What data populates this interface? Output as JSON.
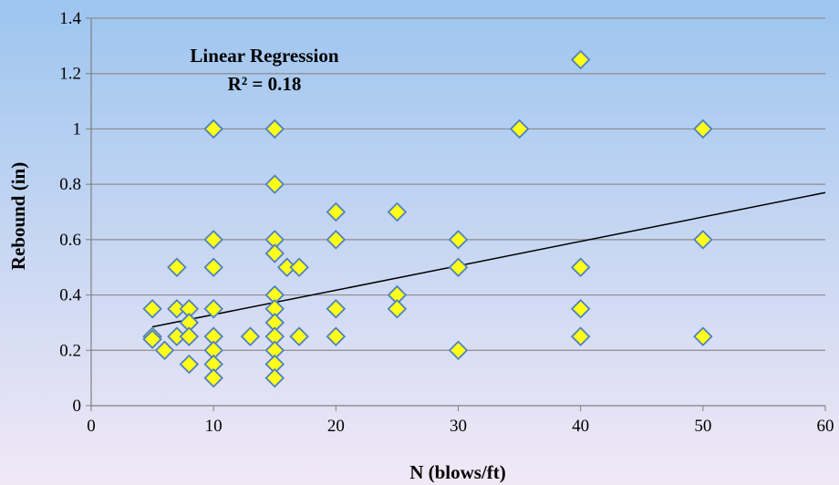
{
  "chart_data": {
    "type": "scatter",
    "xlabel": "N (blows/ft)",
    "ylabel": "Rebound (in)",
    "xlim": [
      0,
      60
    ],
    "ylim": [
      0,
      1.4
    ],
    "x_ticks": [
      "0",
      "10",
      "20",
      "30",
      "40",
      "50",
      "60"
    ],
    "y_ticks": [
      "0",
      "0.2",
      "0.4",
      "0.6",
      "0.8",
      "1",
      "1.2",
      "1.4"
    ],
    "grid": "horizontal",
    "legend": "none",
    "annotation_title": "Linear Regression",
    "annotation_r2": "R² = 0.18",
    "marker": "diamond",
    "colors": {
      "marker_fill": "#ffff1a",
      "marker_edge": "#4f81bd",
      "trendline": "#000000",
      "gridline": "#8c8c8c",
      "bg_top": "#9dc5ef",
      "bg_bottom": "#f1e8f6"
    },
    "trendline": {
      "x": [
        5,
        60
      ],
      "y": [
        0.285,
        0.77
      ]
    },
    "points": [
      [
        5,
        0.35
      ],
      [
        5,
        0.25
      ],
      [
        5,
        0.24
      ],
      [
        6,
        0.2
      ],
      [
        7,
        0.5
      ],
      [
        7,
        0.35
      ],
      [
        7,
        0.25
      ],
      [
        8,
        0.35
      ],
      [
        8,
        0.3
      ],
      [
        8,
        0.25
      ],
      [
        8,
        0.15
      ],
      [
        10,
        1.0
      ],
      [
        10,
        0.6
      ],
      [
        10,
        0.5
      ],
      [
        10,
        0.35
      ],
      [
        10,
        0.25
      ],
      [
        10,
        0.2
      ],
      [
        10,
        0.15
      ],
      [
        10,
        0.1
      ],
      [
        13,
        0.25
      ],
      [
        15,
        1.0
      ],
      [
        15,
        0.8
      ],
      [
        15,
        0.6
      ],
      [
        15,
        0.55
      ],
      [
        15,
        0.4
      ],
      [
        15,
        0.35
      ],
      [
        15,
        0.3
      ],
      [
        15,
        0.25
      ],
      [
        15,
        0.2
      ],
      [
        15,
        0.15
      ],
      [
        15,
        0.1
      ],
      [
        16,
        0.5
      ],
      [
        17,
        0.5
      ],
      [
        17,
        0.25
      ],
      [
        20,
        0.7
      ],
      [
        20,
        0.6
      ],
      [
        20,
        0.35
      ],
      [
        20,
        0.25
      ],
      [
        25,
        0.7
      ],
      [
        25,
        0.4
      ],
      [
        25,
        0.35
      ],
      [
        30,
        0.6
      ],
      [
        30,
        0.5
      ],
      [
        30,
        0.2
      ],
      [
        35,
        1.0
      ],
      [
        40,
        1.25
      ],
      [
        40,
        0.5
      ],
      [
        40,
        0.35
      ],
      [
        40,
        0.25
      ],
      [
        50,
        1.0
      ],
      [
        50,
        0.6
      ],
      [
        50,
        0.25
      ]
    ]
  }
}
